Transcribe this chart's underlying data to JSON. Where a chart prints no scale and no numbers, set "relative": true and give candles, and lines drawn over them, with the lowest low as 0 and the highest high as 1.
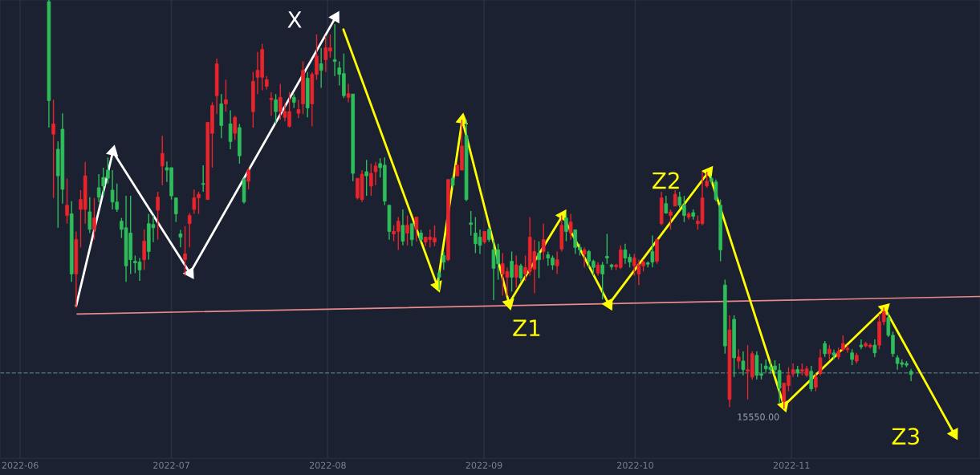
{
  "chart_data": {
    "type": "candlestick",
    "relative": true,
    "xlim": [
      "2022-05-28",
      "2022-12-08T09:00"
    ],
    "xticks": [
      "2022-06",
      "2022-07",
      "2022-08",
      "2022-09",
      "2022-10",
      "2022-11"
    ],
    "grid": "x",
    "series": [
      {
        "color": "#e8242c",
        "x": [
          "2022-06-07T14:24",
          "2022-06-10T07:12",
          "2022-06-12T02:24",
          "2022-06-13T00:00",
          "2022-06-13T21:36",
          "2022-06-15T16:48",
          "2022-06-25T14:24",
          "2022-06-28T07:12",
          "2022-06-29T04:48",
          "2022-07-03T16:48",
          "2022-07-04T14:24",
          "2022-07-05T12:00",
          "2022-07-06T09:36",
          "2022-07-08T04:48",
          "2022-07-09T02:24",
          "2022-07-10T00:00",
          "2022-07-11T19:12",
          "2022-07-13T14:24",
          "2022-07-16T07:12",
          "2022-07-17T04:48",
          "2022-07-18T02:24",
          "2022-07-19T00:00",
          "2022-07-19T21:36",
          "2022-07-20T19:12",
          "2022-07-22T14:24",
          "2022-07-23T12:00",
          "2022-07-24T09:36",
          "2022-07-26T04:48",
          "2022-07-27T02:24",
          "2022-07-28T21:36",
          "2022-07-29T19:12",
          "2022-07-31T14:24",
          "2022-08-01T12:00",
          "2022-08-05T02:24",
          "2022-08-06T21:36",
          "2022-08-07T19:12",
          "2022-08-09T14:24",
          "2022-08-10T12:00",
          "2022-08-14T02:24",
          "2022-08-15T00:00",
          "2022-08-16T19:12",
          "2022-08-18T14:24",
          "2022-08-20T09:36",
          "2022-08-21T07:12",
          "2022-08-22T04:48",
          "2022-08-24T21:36",
          "2022-08-26T16:48",
          "2022-08-27T14:24",
          "2022-09-01T02:24",
          "2022-09-04T16:48",
          "2022-09-05T14:24",
          "2022-09-07T09:36",
          "2022-09-09T04:48",
          "2022-09-10T02:24",
          "2022-09-11T00:00",
          "2022-09-12T19:12",
          "2022-09-15T12:00",
          "2022-09-16T09:36",
          "2022-09-18T04:48",
          "2022-09-20T21:36",
          "2022-09-23T14:24",
          "2022-09-27T04:48",
          "2022-09-28T02:24",
          "2022-09-30T19:12",
          "2022-10-01T16:48",
          "2022-10-02T14:24",
          "2022-10-05T07:12",
          "2022-10-06T04:48",
          "2022-10-08T00:00",
          "2022-10-08T21:36",
          "2022-10-11T14:24",
          "2022-10-13T09:36",
          "2022-10-14T07:12",
          "2022-10-15T04:48",
          "2022-10-19T16:48",
          "2022-10-21T12:00",
          "2022-10-23T07:12",
          "2022-10-24T04:48",
          "2022-10-30T12:00",
          "2022-10-31T09:36",
          "2022-11-01T07:12",
          "2022-11-03T02:24",
          "2022-11-04T00:00",
          "2022-11-05T19:12",
          "2022-11-06T16:48",
          "2022-11-08T12:00",
          "2022-11-10T07:12",
          "2022-11-11T04:48",
          "2022-11-12T02:24",
          "2022-11-13T21:36",
          "2022-11-15T16:48",
          "2022-11-16T14:24",
          "2022-11-18T09:36",
          "2022-11-19T07:12"
        ],
        "ohlc": [
          [
            0.672,
            0.756,
            0.516,
            0.697
          ],
          [
            0.473,
            0.563,
            0.453,
            0.498
          ],
          [
            0.33,
            0.434,
            0.248,
            0.414
          ],
          [
            0.488,
            0.535,
            0.395,
            0.512
          ],
          [
            0.488,
            0.604,
            0.453,
            0.57
          ],
          [
            0.439,
            0.516,
            0.414,
            0.467
          ],
          [
            0.365,
            0.439,
            0.34,
            0.41
          ],
          [
            0.486,
            0.531,
            0.414,
            0.518
          ],
          [
            0.594,
            0.668,
            0.547,
            0.625
          ],
          [
            0.365,
            0.447,
            0.326,
            0.379
          ],
          [
            0.453,
            0.479,
            0.395,
            0.473
          ],
          [
            0.488,
            0.537,
            0.477,
            0.516
          ],
          [
            0.516,
            0.531,
            0.477,
            0.525
          ],
          [
            0.512,
            0.701,
            0.512,
            0.701
          ],
          [
            0.674,
            0.75,
            0.59,
            0.742
          ],
          [
            0.766,
            0.857,
            0.721,
            0.844
          ],
          [
            0.746,
            0.805,
            0.727,
            0.756
          ],
          [
            0.674,
            0.717,
            0.658,
            0.713
          ],
          [
            0.557,
            0.59,
            0.537,
            0.584
          ],
          [
            0.727,
            0.824,
            0.688,
            0.801
          ],
          [
            0.811,
            0.873,
            0.77,
            0.828
          ],
          [
            0.811,
            0.893,
            0.779,
            0.879
          ],
          [
            0.789,
            0.814,
            0.781,
            0.805
          ],
          [
            0.756,
            0.775,
            0.717,
            0.76
          ],
          [
            0.727,
            0.795,
            0.707,
            0.762
          ],
          [
            0.713,
            0.746,
            0.703,
            0.727
          ],
          [
            0.691,
            0.775,
            0.688,
            0.727
          ],
          [
            0.723,
            0.756,
            0.711,
            0.732
          ],
          [
            0.746,
            0.85,
            0.721,
            0.828
          ],
          [
            0.746,
            0.824,
            0.691,
            0.818
          ],
          [
            0.818,
            0.916,
            0.805,
            0.863
          ],
          [
            0.854,
            0.912,
            0.824,
            0.883
          ],
          [
            0.875,
            0.916,
            0.859,
            0.883
          ],
          [
            0.762,
            0.795,
            0.75,
            0.771
          ],
          [
            0.516,
            0.564,
            0.512,
            0.564
          ],
          [
            0.512,
            0.584,
            0.506,
            0.574
          ],
          [
            0.545,
            0.6,
            0.521,
            0.576
          ],
          [
            0.58,
            0.604,
            0.547,
            0.594
          ],
          [
            0.428,
            0.449,
            0.41,
            0.434
          ],
          [
            0.434,
            0.469,
            0.389,
            0.459
          ],
          [
            0.43,
            0.473,
            0.4,
            0.449
          ],
          [
            0.439,
            0.469,
            0.41,
            0.469
          ],
          [
            0.408,
            0.42,
            0.398,
            0.42
          ],
          [
            0.414,
            0.439,
            0.395,
            0.42
          ],
          [
            0.408,
            0.449,
            0.398,
            0.418
          ],
          [
            0.365,
            0.561,
            0.361,
            0.561
          ],
          [
            0.57,
            0.6,
            0.57,
            0.596
          ],
          [
            0.584,
            0.707,
            0.584,
            0.643
          ],
          [
            0.408,
            0.434,
            0.404,
            0.434
          ],
          [
            0.33,
            0.381,
            0.277,
            0.355
          ],
          [
            0.322,
            0.346,
            0.277,
            0.336
          ],
          [
            0.322,
            0.375,
            0.297,
            0.352
          ],
          [
            0.33,
            0.375,
            0.313,
            0.346
          ],
          [
            0.336,
            0.469,
            0.326,
            0.42
          ],
          [
            0.342,
            0.414,
            0.283,
            0.385
          ],
          [
            0.385,
            0.453,
            0.365,
            0.414
          ],
          [
            0.35,
            0.385,
            0.33,
            0.365
          ],
          [
            0.391,
            0.473,
            0.385,
            0.449
          ],
          [
            0.43,
            0.477,
            0.414,
            0.457
          ],
          [
            0.379,
            0.395,
            0.346,
            0.389
          ],
          [
            0.332,
            0.359,
            0.326,
            0.352
          ],
          [
            0.348,
            0.355,
            0.34,
            0.352
          ],
          [
            0.346,
            0.4,
            0.342,
            0.389
          ],
          [
            0.35,
            0.379,
            0.326,
            0.369
          ],
          [
            0.33,
            0.365,
            0.303,
            0.352
          ],
          [
            0.35,
            0.365,
            0.336,
            0.359
          ],
          [
            0.361,
            0.418,
            0.355,
            0.414
          ],
          [
            0.453,
            0.531,
            0.449,
            0.516
          ],
          [
            0.473,
            0.488,
            0.438,
            0.482
          ],
          [
            0.496,
            0.535,
            0.496,
            0.525
          ],
          [
            0.469,
            0.482,
            0.463,
            0.477
          ],
          [
            0.453,
            0.473,
            0.438,
            0.459
          ],
          [
            0.453,
            0.58,
            0.449,
            0.516
          ],
          [
            0.545,
            0.58,
            0.541,
            0.557
          ],
          [
            0.023,
            0.229,
            0.004,
            0.193
          ],
          [
            0.117,
            0.146,
            0.098,
            0.127
          ],
          [
            0.092,
            0.156,
            0.023,
            0.096
          ],
          [
            0.078,
            0.141,
            0.072,
            0.135
          ],
          [
            0.018,
            0.063,
            0,
            0.063
          ],
          [
            0.057,
            0.102,
            0.043,
            0.082
          ],
          [
            0.086,
            0.111,
            0.078,
            0.096
          ],
          [
            0.092,
            0.111,
            0.082,
            0.096
          ],
          [
            0.082,
            0.105,
            0.078,
            0.098
          ],
          [
            0.053,
            0.086,
            0.043,
            0.078
          ],
          [
            0.086,
            0.146,
            0.082,
            0.125
          ],
          [
            0.135,
            0.156,
            0.121,
            0.146
          ],
          [
            0.127,
            0.15,
            0.121,
            0.141
          ],
          [
            0.145,
            0.18,
            0.141,
            0.16
          ],
          [
            0.145,
            0.156,
            0.137,
            0.148
          ],
          [
            0.117,
            0.137,
            0.111,
            0.131
          ],
          [
            0.154,
            0.164,
            0.15,
            0.16
          ],
          [
            0.152,
            0.16,
            0.148,
            0.156
          ],
          [
            0.156,
            0.232,
            0.146,
            0.213
          ],
          [
            0.213,
            0.248,
            0.205,
            0.238
          ]
        ]
      },
      {
        "color": "#2ebd5a",
        "x": [
          "2022-06-06T16:48",
          "2022-06-08T12:00",
          "2022-06-09T09:36",
          "2022-06-11T04:48",
          "2022-06-14T19:12",
          "2022-06-16T14:24",
          "2022-06-17T12:00",
          "2022-06-18T09:36",
          "2022-06-19T07:12",
          "2022-06-20T04:48",
          "2022-06-21T02:24",
          "2022-06-22T00:00",
          "2022-06-22T21:36",
          "2022-06-23T19:12",
          "2022-06-24T16:48",
          "2022-06-26T12:00",
          "2022-06-27T09:36",
          "2022-06-30T02:24",
          "2022-07-01T00:00",
          "2022-07-01T21:36",
          "2022-07-02T19:12",
          "2022-07-07T07:12",
          "2022-07-10T21:36",
          "2022-07-12T16:48",
          "2022-07-14T12:00",
          "2022-07-15T09:36",
          "2022-07-21T16:48",
          "2022-07-25T07:12",
          "2022-07-28T00:00",
          "2022-07-30T16:48",
          "2022-08-02T09:36",
          "2022-08-03T07:12",
          "2022-08-04T04:48",
          "2022-08-06T00:00",
          "2022-08-08T16:48",
          "2022-08-11T09:36",
          "2022-08-12T07:12",
          "2022-08-13T04:48",
          "2022-08-15T21:36",
          "2022-08-17T16:48",
          "2022-08-19T12:00",
          "2022-08-23T02:24",
          "2022-08-24T00:00",
          "2022-08-25T19:12",
          "2022-08-28T12:00",
          "2022-08-29T09:36",
          "2022-08-30T07:12",
          "2022-08-31T04:48",
          "2022-09-02T00:00",
          "2022-09-02T21:36",
          "2022-09-03T19:12",
          "2022-09-06T12:00",
          "2022-09-08T07:12",
          "2022-09-11T21:36",
          "2022-09-13T16:48",
          "2022-09-14T14:24",
          "2022-09-17T07:12",
          "2022-09-19T02:24",
          "2022-09-20T00:00",
          "2022-09-21T19:12",
          "2022-09-22T16:48",
          "2022-09-24T12:00",
          "2022-09-25T09:36",
          "2022-09-26T07:12",
          "2022-09-29T00:00",
          "2022-09-29T21:36",
          "2022-10-03T12:00",
          "2022-10-04T09:36",
          "2022-10-07T02:24",
          "2022-10-09T19:12",
          "2022-10-10T16:48",
          "2022-10-12T12:00",
          "2022-10-16T02:24",
          "2022-10-17T00:00",
          "2022-10-17T21:36",
          "2022-10-18T19:12",
          "2022-10-20T14:24",
          "2022-10-22T09:36",
          "2022-10-25T02:24",
          "2022-10-26T00:00",
          "2022-10-26T21:36",
          "2022-10-27T19:12",
          "2022-10-28T16:48",
          "2022-10-29T14:24",
          "2022-11-02T04:48",
          "2022-11-04T21:36",
          "2022-11-07T14:24",
          "2022-11-09T09:36",
          "2022-11-13T00:00",
          "2022-11-14T19:12",
          "2022-11-17T12:00",
          "2022-11-20T04:48",
          "2022-11-21T02:24",
          "2022-11-22T00:00",
          "2022-11-22T21:36",
          "2022-11-23T19:12",
          "2022-11-24T16:48"
        ],
        "ohlc": [
          [
            0.996,
            1.0,
            0.688,
            0.754
          ],
          [
            0.635,
            0.654,
            0.443,
            0.57
          ],
          [
            0.684,
            0.723,
            0.502,
            0.537
          ],
          [
            0.477,
            0.508,
            0.311,
            0.33
          ],
          [
            0.482,
            0.518,
            0.43,
            0.439
          ],
          [
            0.541,
            0.574,
            0.506,
            0.518
          ],
          [
            0.566,
            0.59,
            0.521,
            0.545
          ],
          [
            0.584,
            0.615,
            0.551,
            0.564
          ],
          [
            0.535,
            0.584,
            0.488,
            0.506
          ],
          [
            0.506,
            0.551,
            0.482,
            0.488
          ],
          [
            0.459,
            0.467,
            0.418,
            0.439
          ],
          [
            0.443,
            0.521,
            0.311,
            0.35
          ],
          [
            0.43,
            0.521,
            0.33,
            0.365
          ],
          [
            0.361,
            0.375,
            0.332,
            0.357
          ],
          [
            0.359,
            0.369,
            0.313,
            0.34
          ],
          [
            0.453,
            0.477,
            0.365,
            0.385
          ],
          [
            0.451,
            0.473,
            0.408,
            0.443
          ],
          [
            0.59,
            0.605,
            0.555,
            0.584
          ],
          [
            0.59,
            0.59,
            0.512,
            0.521
          ],
          [
            0.516,
            0.516,
            0.457,
            0.477
          ],
          [
            0.428,
            0.438,
            0.395,
            0.42
          ],
          [
            0.551,
            0.596,
            0.531,
            0.549
          ],
          [
            0.746,
            0.77,
            0.662,
            0.693
          ],
          [
            0.697,
            0.73,
            0.635,
            0.654
          ],
          [
            0.688,
            0.697,
            0.6,
            0.619
          ],
          [
            0.561,
            0.566,
            0.502,
            0.506
          ],
          [
            0.756,
            0.77,
            0.697,
            0.727
          ],
          [
            0.762,
            0.77,
            0.736,
            0.75
          ],
          [
            0.809,
            0.824,
            0.713,
            0.736
          ],
          [
            0.844,
            0.883,
            0.785,
            0.828
          ],
          [
            0.854,
            0.941,
            0.814,
            0.85
          ],
          [
            0.834,
            0.85,
            0.791,
            0.818
          ],
          [
            0.82,
            0.869,
            0.76,
            0.766
          ],
          [
            0.77,
            0.77,
            0.557,
            0.576
          ],
          [
            0.58,
            0.609,
            0.521,
            0.57
          ],
          [
            0.6,
            0.613,
            0.566,
            0.59
          ],
          [
            0.596,
            0.615,
            0.498,
            0.508
          ],
          [
            0.498,
            0.498,
            0.414,
            0.434
          ],
          [
            0.449,
            0.488,
            0.4,
            0.41
          ],
          [
            0.453,
            0.453,
            0.398,
            0.414
          ],
          [
            0.43,
            0.438,
            0.408,
            0.414
          ],
          [
            0.332,
            0.34,
            0.291,
            0.322
          ],
          [
            0.375,
            0.385,
            0.34,
            0.359
          ],
          [
            0.564,
            0.57,
            0.541,
            0.547
          ],
          [
            0.668,
            0.707,
            0.508,
            0.512
          ],
          [
            0.455,
            0.484,
            0.424,
            0.451
          ],
          [
            0.43,
            0.469,
            0.381,
            0.404
          ],
          [
            0.42,
            0.439,
            0.379,
            0.4
          ],
          [
            0.439,
            0.443,
            0.408,
            0.414
          ],
          [
            0.389,
            0.414,
            0.266,
            0.344
          ],
          [
            0.389,
            0.404,
            0.316,
            0.355
          ],
          [
            0.361,
            0.385,
            0.287,
            0.322
          ],
          [
            0.35,
            0.355,
            0.311,
            0.32
          ],
          [
            0.381,
            0.41,
            0.32,
            0.365
          ],
          [
            0.377,
            0.385,
            0.35,
            0.369
          ],
          [
            0.369,
            0.375,
            0.34,
            0.352
          ],
          [
            0.467,
            0.477,
            0.41,
            0.434
          ],
          [
            0.438,
            0.438,
            0.379,
            0.395
          ],
          [
            0.395,
            0.404,
            0.375,
            0.389
          ],
          [
            0.385,
            0.389,
            0.346,
            0.361
          ],
          [
            0.361,
            0.365,
            0.326,
            0.346
          ],
          [
            0.352,
            0.359,
            0.268,
            0.33
          ],
          [
            0.373,
            0.428,
            0.355,
            0.369
          ],
          [
            0.352,
            0.355,
            0.34,
            0.348
          ],
          [
            0.389,
            0.404,
            0.355,
            0.369
          ],
          [
            0.371,
            0.379,
            0.346,
            0.359
          ],
          [
            0.357,
            0.361,
            0.346,
            0.354
          ],
          [
            0.385,
            0.424,
            0.346,
            0.359
          ],
          [
            0.502,
            0.521,
            0.477,
            0.479
          ],
          [
            0.518,
            0.531,
            0.492,
            0.498
          ],
          [
            0.498,
            0.521,
            0.457,
            0.473
          ],
          [
            0.48,
            0.488,
            0.463,
            0.471
          ],
          [
            0.564,
            0.57,
            0.551,
            0.557
          ],
          [
            0.555,
            0.561,
            0.508,
            0.512
          ],
          [
            0.498,
            0.512,
            0.361,
            0.389
          ],
          [
            0.303,
            0.316,
            0.135,
            0.154
          ],
          [
            0.219,
            0.229,
            0.078,
            0.125
          ],
          [
            0.117,
            0.141,
            0.082,
            0.096
          ],
          [
            0.131,
            0.141,
            0.072,
            0.082
          ],
          [
            0.086,
            0.111,
            0.072,
            0.082
          ],
          [
            0.105,
            0.121,
            0.09,
            0.098
          ],
          [
            0.102,
            0.117,
            0.086,
            0.096
          ],
          [
            0.105,
            0.119,
            0.082,
            0.096
          ],
          [
            0.094,
            0.111,
            0.014,
            0.051
          ],
          [
            0.096,
            0.105,
            0.078,
            0.088
          ],
          [
            0.092,
            0.105,
            0.043,
            0.049
          ],
          [
            0.16,
            0.166,
            0.127,
            0.135
          ],
          [
            0.137,
            0.145,
            0.121,
            0.131
          ],
          [
            0.137,
            0.146,
            0.107,
            0.121
          ],
          [
            0.156,
            0.17,
            0.146,
            0.152
          ],
          [
            0.156,
            0.17,
            0.127,
            0.137
          ],
          [
            0.223,
            0.234,
            0.176,
            0.18
          ],
          [
            0.18,
            0.189,
            0.127,
            0.135
          ],
          [
            0.125,
            0.131,
            0.096,
            0.111
          ],
          [
            0.113,
            0.121,
            0.102,
            0.109
          ],
          [
            0.111,
            0.117,
            0.102,
            0.107
          ],
          [
            0.092,
            0.098,
            0.068,
            0.084
          ]
        ]
      },
      {
        "type": "line",
        "color": "#e88a8a",
        "marker": "none",
        "x": [
          "2022-06-12T06:43",
          "2022-12-08T09:00"
        ],
        "values": [
          0.232,
          0.275
        ]
      },
      {
        "type": "line",
        "color": "#ffffff",
        "marker": "triangle",
        "x": [
          "2022-06-12T02:24",
          "2022-06-19T09:22",
          "2022-07-04T16:34",
          "2022-08-02T13:55"
        ],
        "values": [
          0.252,
          0.629,
          0.332,
          0.958
        ]
      },
      {
        "type": "line",
        "color": "#ffff00",
        "marker": "triangle",
        "x": [
          "2022-08-04T02:38",
          "2022-08-22T17:46",
          "2022-08-27T16:34",
          "2022-09-05T23:02",
          "2022-09-16T13:55",
          "2022-09-25T18:14",
          "2022-10-15T13:26",
          "2022-10-30T12:00",
          "2022-11-19T11:31",
          "2022-12-03T06:00"
        ],
        "values": [
          0.928,
          0.301,
          0.707,
          0.258,
          0.473,
          0.256,
          0.58,
          0.008,
          0.246,
          -0.061
        ]
      }
    ],
    "ref_lines": [
      {
        "axis": "y",
        "value": 0.088,
        "color": "#4d6a6c",
        "line_style": "dashed"
      }
    ],
    "annotations": [
      {
        "text": "X",
        "x": "2022-08-02T13:55",
        "y": 0.958
      },
      {
        "text": "Z1",
        "x": "2022-09-05T23:02",
        "y": 0.258
      },
      {
        "text": "Z2",
        "x": "2022-10-15T13:26",
        "y": 0.58
      },
      {
        "text": "Z3",
        "x": "2022-12-03T06:00",
        "y": -0.061
      },
      {
        "text": "15550.00",
        "x": "2022-10-30T12:00",
        "y": 0
      }
    ]
  }
}
